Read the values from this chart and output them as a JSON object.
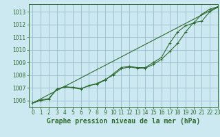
{
  "title": "Graphe pression niveau de la mer (hPa)",
  "bg_color": "#cce8f0",
  "grid_color": "#99bbcc",
  "line_color": "#2d6a2d",
  "xlim": [
    -0.5,
    23
  ],
  "ylim": [
    1005.5,
    1013.6
  ],
  "yticks": [
    1006,
    1007,
    1008,
    1009,
    1010,
    1011,
    1012,
    1013
  ],
  "xticks": [
    0,
    1,
    2,
    3,
    4,
    5,
    6,
    7,
    8,
    9,
    10,
    11,
    12,
    13,
    14,
    15,
    16,
    17,
    18,
    19,
    20,
    21,
    22,
    23
  ],
  "series_variable": [
    1005.8,
    1006.0,
    1006.1,
    1006.9,
    1007.1,
    1007.0,
    1006.9,
    1007.2,
    1007.3,
    1007.6,
    1008.1,
    1008.6,
    1008.7,
    1008.6,
    1008.6,
    1009.0,
    1009.4,
    1010.5,
    1011.4,
    1011.9,
    1012.1,
    1012.8,
    1013.2,
    1013.4
  ],
  "series_smooth": [
    1005.8,
    1006.05,
    1006.15,
    1006.9,
    1007.05,
    1007.05,
    1006.95,
    1007.15,
    1007.35,
    1007.65,
    1008.0,
    1008.5,
    1008.65,
    1008.55,
    1008.55,
    1008.85,
    1009.25,
    1009.85,
    1010.5,
    1011.4,
    1012.15,
    1012.25,
    1013.0,
    1013.35
  ],
  "trend_x": [
    0,
    23
  ],
  "trend_y": [
    1005.8,
    1013.4
  ],
  "fontsize_title": 7,
  "fontsize_ticks": 5.5
}
